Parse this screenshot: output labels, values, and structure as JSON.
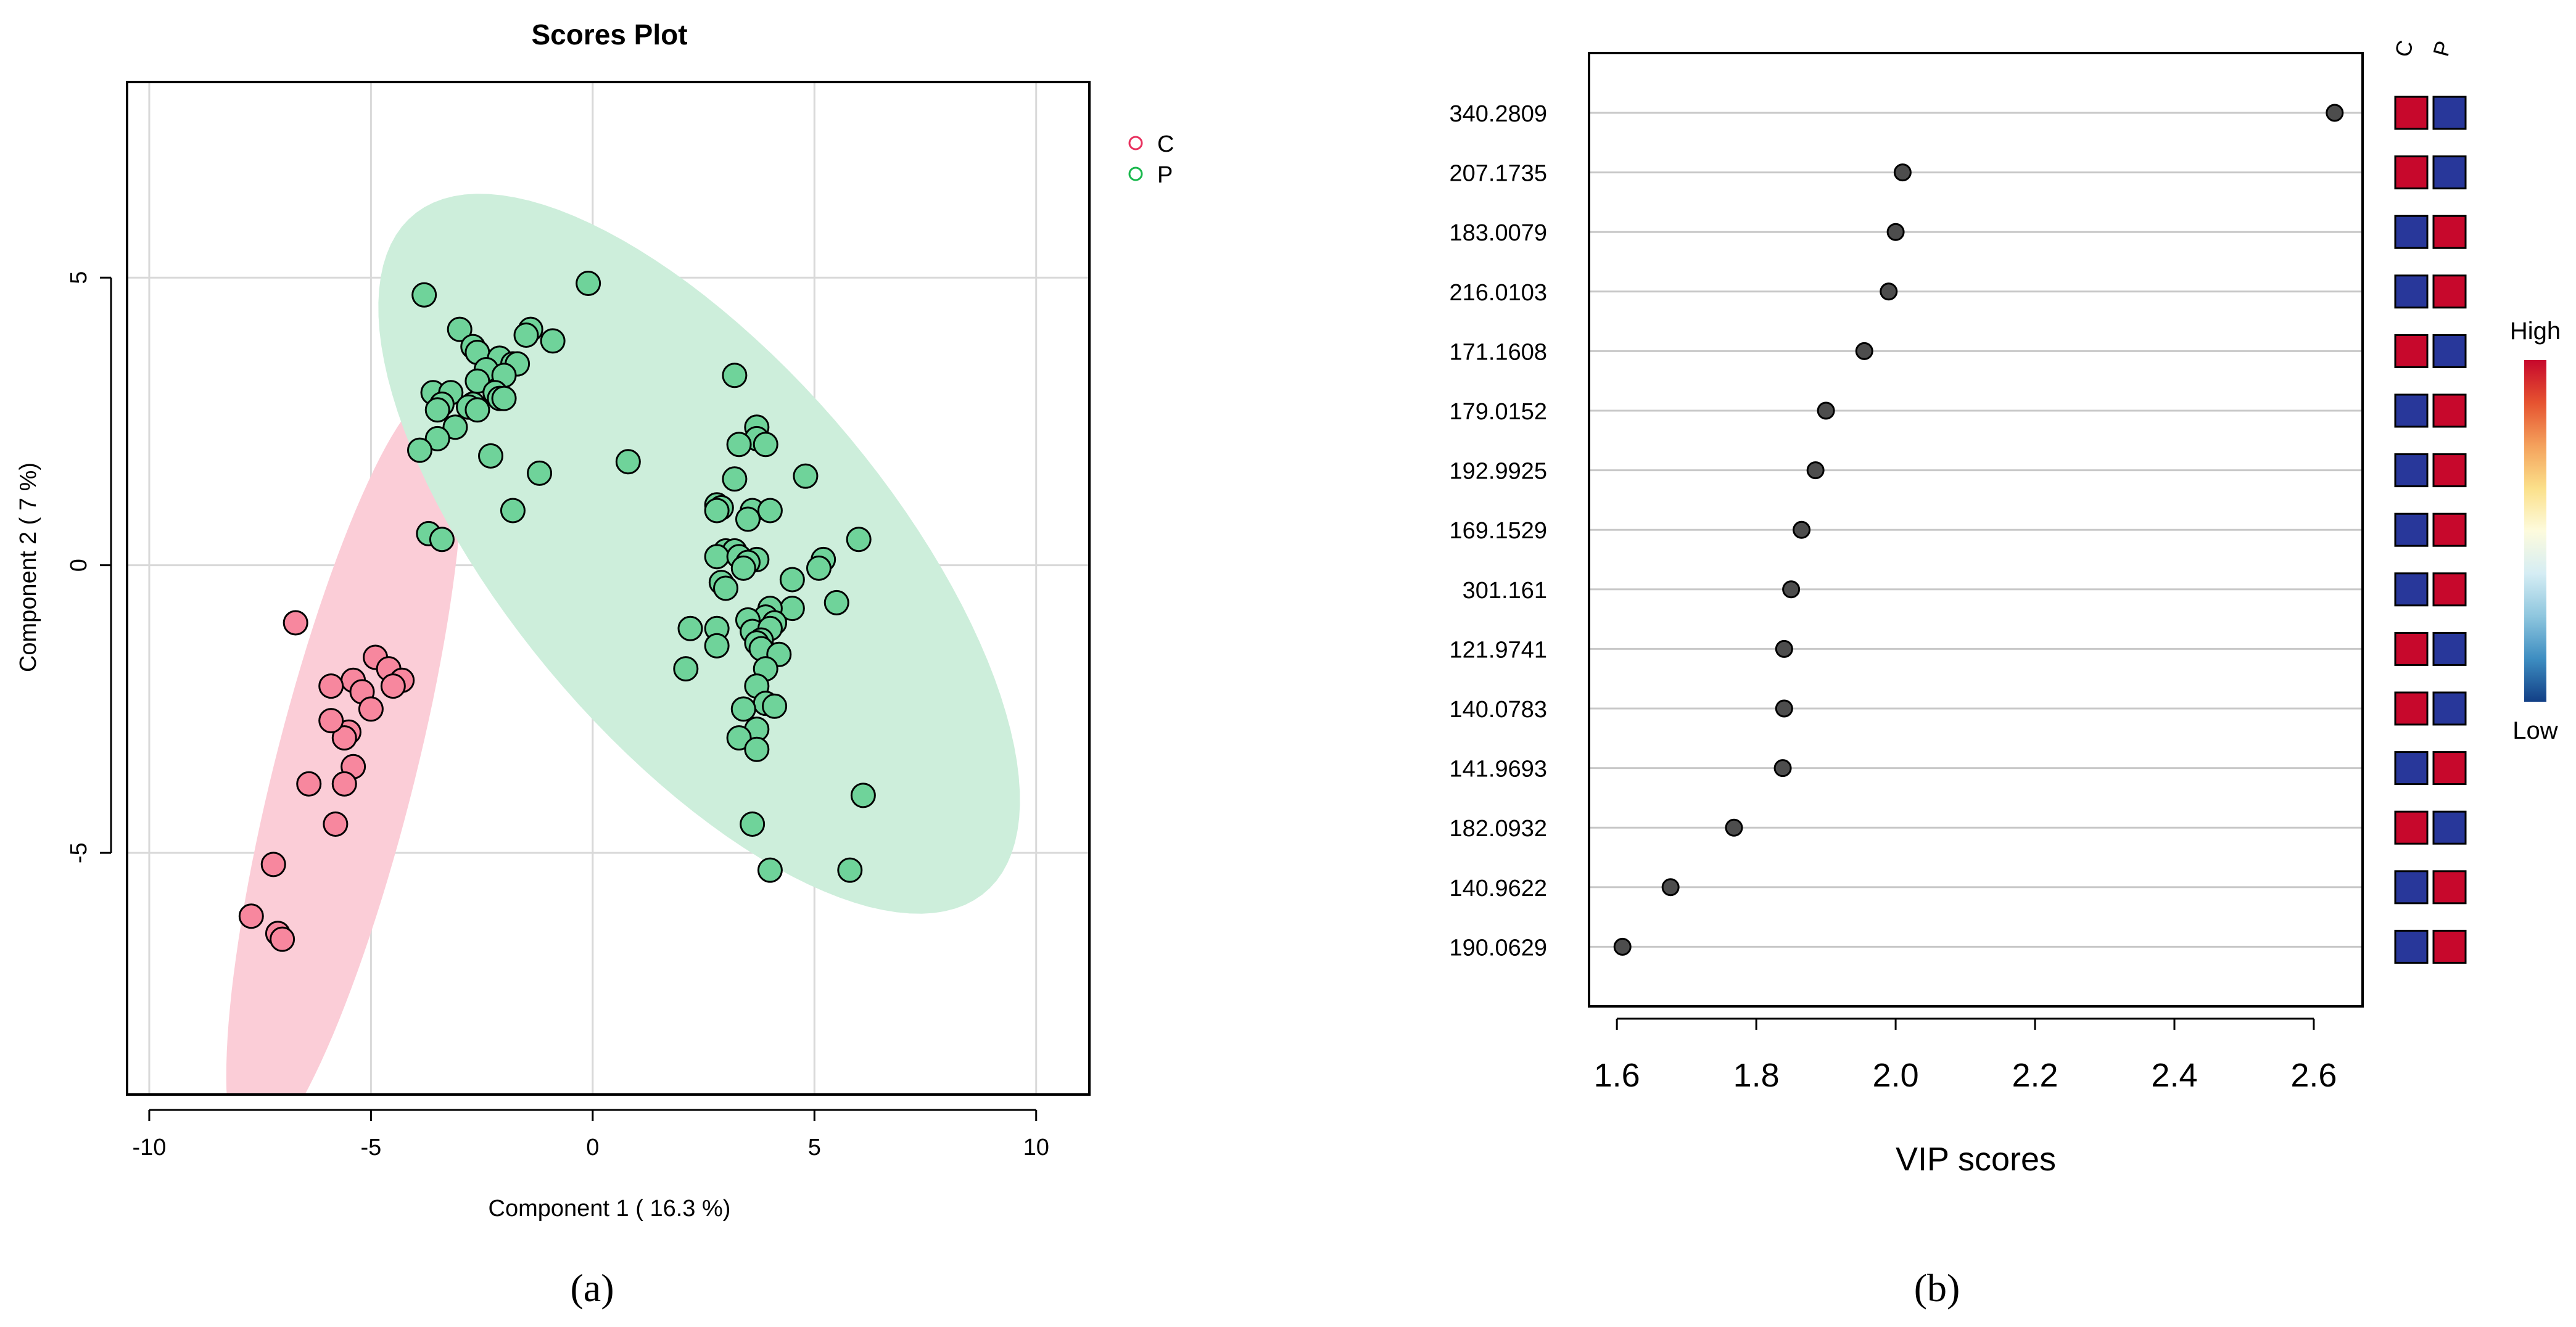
{
  "panel_a": {
    "caption": "(a)",
    "chart_data": {
      "type": "scatter",
      "title": "Scores Plot",
      "xlabel": "Component 1 ( 16.3 %)",
      "ylabel": "Component 2 ( 7 %)",
      "xlim": [
        -10.5,
        11.2
      ],
      "ylim": [
        -9.2,
        8.4
      ],
      "x_ticks": [
        -10,
        -5,
        0,
        5,
        10
      ],
      "y_ticks": [
        5,
        0,
        -5
      ],
      "x_tick_labels": [
        "-10",
        "-5",
        "0",
        "5",
        "10"
      ],
      "y_tick_labels": [
        "5",
        "0",
        "-5"
      ],
      "grid": true,
      "legend": [
        {
          "label": "C",
          "color": "#e8305e"
        },
        {
          "label": "P",
          "color": "#18b84c"
        }
      ],
      "series": [
        {
          "name": "C",
          "fill": "#f7879e",
          "ellipse": {
            "cx": -5.6,
            "cy": -3.6,
            "rx": 7.0,
            "ry": 1.55,
            "angle_deg": 71.5,
            "fill": "#fbcdd7"
          },
          "points": [
            [
              -6.7,
              -1.0
            ],
            [
              -4.9,
              -1.6
            ],
            [
              -4.6,
              -1.8
            ],
            [
              -4.3,
              -2.0
            ],
            [
              -5.4,
              -2.0
            ],
            [
              -5.2,
              -2.2
            ],
            [
              -4.5,
              -2.1
            ],
            [
              -5.0,
              -2.5
            ],
            [
              -5.9,
              -2.1
            ],
            [
              -5.5,
              -2.9
            ],
            [
              -5.6,
              -3.0
            ],
            [
              -5.9,
              -2.7
            ],
            [
              -5.4,
              -3.5
            ],
            [
              -6.4,
              -3.8
            ],
            [
              -5.6,
              -3.8
            ],
            [
              -5.8,
              -4.5
            ],
            [
              -7.2,
              -5.2
            ],
            [
              -7.7,
              -6.1
            ],
            [
              -7.1,
              -6.4
            ],
            [
              -7.0,
              -6.5
            ]
          ]
        },
        {
          "name": "P",
          "fill": "#6fd39a",
          "ellipse": {
            "cx": 2.4,
            "cy": 0.2,
            "rx": 8.8,
            "ry": 3.75,
            "angle_deg": -39,
            "fill": "#cdeedb"
          },
          "points": [
            [
              -3.8,
              4.7
            ],
            [
              -0.1,
              4.9
            ],
            [
              -3.0,
              4.1
            ],
            [
              -1.4,
              4.1
            ],
            [
              -1.5,
              4.0
            ],
            [
              -0.9,
              3.9
            ],
            [
              -2.7,
              3.8
            ],
            [
              -2.6,
              3.7
            ],
            [
              -2.1,
              3.6
            ],
            [
              -1.8,
              3.5
            ],
            [
              -1.7,
              3.5
            ],
            [
              -2.4,
              3.4
            ],
            [
              -2.0,
              3.3
            ],
            [
              -2.6,
              3.2
            ],
            [
              -3.6,
              3.0
            ],
            [
              -3.2,
              3.0
            ],
            [
              -2.2,
              3.0
            ],
            [
              -2.1,
              2.9
            ],
            [
              -2.0,
              2.9
            ],
            [
              -3.4,
              2.8
            ],
            [
              -2.7,
              2.8
            ],
            [
              -2.8,
              2.75
            ],
            [
              -2.6,
              2.7
            ],
            [
              -3.5,
              2.7
            ],
            [
              -3.1,
              2.4
            ],
            [
              -3.5,
              2.2
            ],
            [
              -3.9,
              2.0
            ],
            [
              -2.3,
              1.9
            ],
            [
              -1.2,
              1.6
            ],
            [
              -1.8,
              0.95
            ],
            [
              -3.7,
              0.55
            ],
            [
              -3.4,
              0.45
            ],
            [
              0.8,
              1.8
            ],
            [
              3.2,
              3.3
            ],
            [
              3.7,
              2.4
            ],
            [
              3.7,
              2.2
            ],
            [
              3.3,
              2.1
            ],
            [
              3.9,
              2.1
            ],
            [
              4.8,
              1.55
            ],
            [
              3.2,
              1.5
            ],
            [
              2.8,
              1.05
            ],
            [
              2.9,
              1.0
            ],
            [
              2.8,
              0.95
            ],
            [
              3.6,
              0.95
            ],
            [
              4.0,
              0.95
            ],
            [
              3.5,
              0.8
            ],
            [
              6.0,
              0.45
            ],
            [
              3.0,
              0.25
            ],
            [
              3.2,
              0.25
            ],
            [
              2.8,
              0.15
            ],
            [
              3.3,
              0.15
            ],
            [
              3.7,
              0.1
            ],
            [
              3.5,
              0.05
            ],
            [
              3.4,
              -0.05
            ],
            [
              5.2,
              0.1
            ],
            [
              5.1,
              -0.05
            ],
            [
              2.9,
              -0.3
            ],
            [
              3.0,
              -0.4
            ],
            [
              4.5,
              -0.25
            ],
            [
              5.5,
              -0.65
            ],
            [
              4.5,
              -0.75
            ],
            [
              4.0,
              -0.75
            ],
            [
              3.9,
              -0.9
            ],
            [
              3.5,
              -0.95
            ],
            [
              4.1,
              -1.0
            ],
            [
              2.2,
              -1.1
            ],
            [
              3.6,
              -1.15
            ],
            [
              4.0,
              -1.1
            ],
            [
              2.8,
              -1.1
            ],
            [
              3.8,
              -1.3
            ],
            [
              2.8,
              -1.4
            ],
            [
              3.7,
              -1.35
            ],
            [
              3.8,
              -1.45
            ],
            [
              4.2,
              -1.55
            ],
            [
              2.1,
              -1.8
            ],
            [
              3.9,
              -1.8
            ],
            [
              3.7,
              -2.1
            ],
            [
              3.9,
              -2.4
            ],
            [
              4.1,
              -2.45
            ],
            [
              3.4,
              -2.5
            ],
            [
              3.7,
              -2.85
            ],
            [
              3.3,
              -3.0
            ],
            [
              3.7,
              -3.2
            ],
            [
              6.1,
              -4.0
            ],
            [
              3.6,
              -4.5
            ],
            [
              4.0,
              -5.3
            ],
            [
              5.8,
              -5.3
            ]
          ]
        }
      ]
    }
  },
  "panel_b": {
    "caption": "(b)",
    "chart_data": {
      "type": "dot",
      "xlabel": "VIP scores",
      "xlim": [
        1.56,
        2.67
      ],
      "x_ticks": [
        1.6,
        1.8,
        2.0,
        2.2,
        2.4,
        2.6
      ],
      "x_tick_labels": [
        "1.6",
        "1.8",
        "2.0",
        "2.2",
        "2.4",
        "2.6"
      ],
      "categories": [
        "340.2809",
        "207.1735",
        "183.0079",
        "216.0103",
        "171.1608",
        "179.0152",
        "192.9925",
        "169.1529",
        "301.161",
        "121.9741",
        "140.0783",
        "141.9693",
        "182.0932",
        "140.9622",
        "190.0629"
      ],
      "values": [
        2.63,
        2.01,
        2.0,
        1.99,
        1.955,
        1.9,
        1.885,
        1.865,
        1.85,
        1.84,
        1.84,
        1.838,
        1.768,
        1.677,
        1.608
      ],
      "heatmap_columns": [
        "C",
        "P"
      ],
      "heatmap": [
        [
          "high",
          "low"
        ],
        [
          "high",
          "low"
        ],
        [
          "low",
          "high"
        ],
        [
          "low",
          "high"
        ],
        [
          "high",
          "low"
        ],
        [
          "low",
          "high"
        ],
        [
          "low",
          "high"
        ],
        [
          "low",
          "high"
        ],
        [
          "low",
          "high"
        ],
        [
          "high",
          "low"
        ],
        [
          "high",
          "low"
        ],
        [
          "low",
          "high"
        ],
        [
          "high",
          "low"
        ],
        [
          "low",
          "high"
        ],
        [
          "low",
          "high"
        ]
      ],
      "colors": {
        "high": "#c7082c",
        "low": "#28379a",
        "dot": "#4d4d4d",
        "line": "#c8c8c8"
      },
      "colorbar": {
        "high_label": "High",
        "low_label": "Low",
        "stops": [
          "#c7082c",
          "#e65330",
          "#f4a15c",
          "#fbe08a",
          "#fdfbdd",
          "#d5edf4",
          "#8ec6de",
          "#3d8dc1",
          "#123f86"
        ]
      }
    }
  }
}
